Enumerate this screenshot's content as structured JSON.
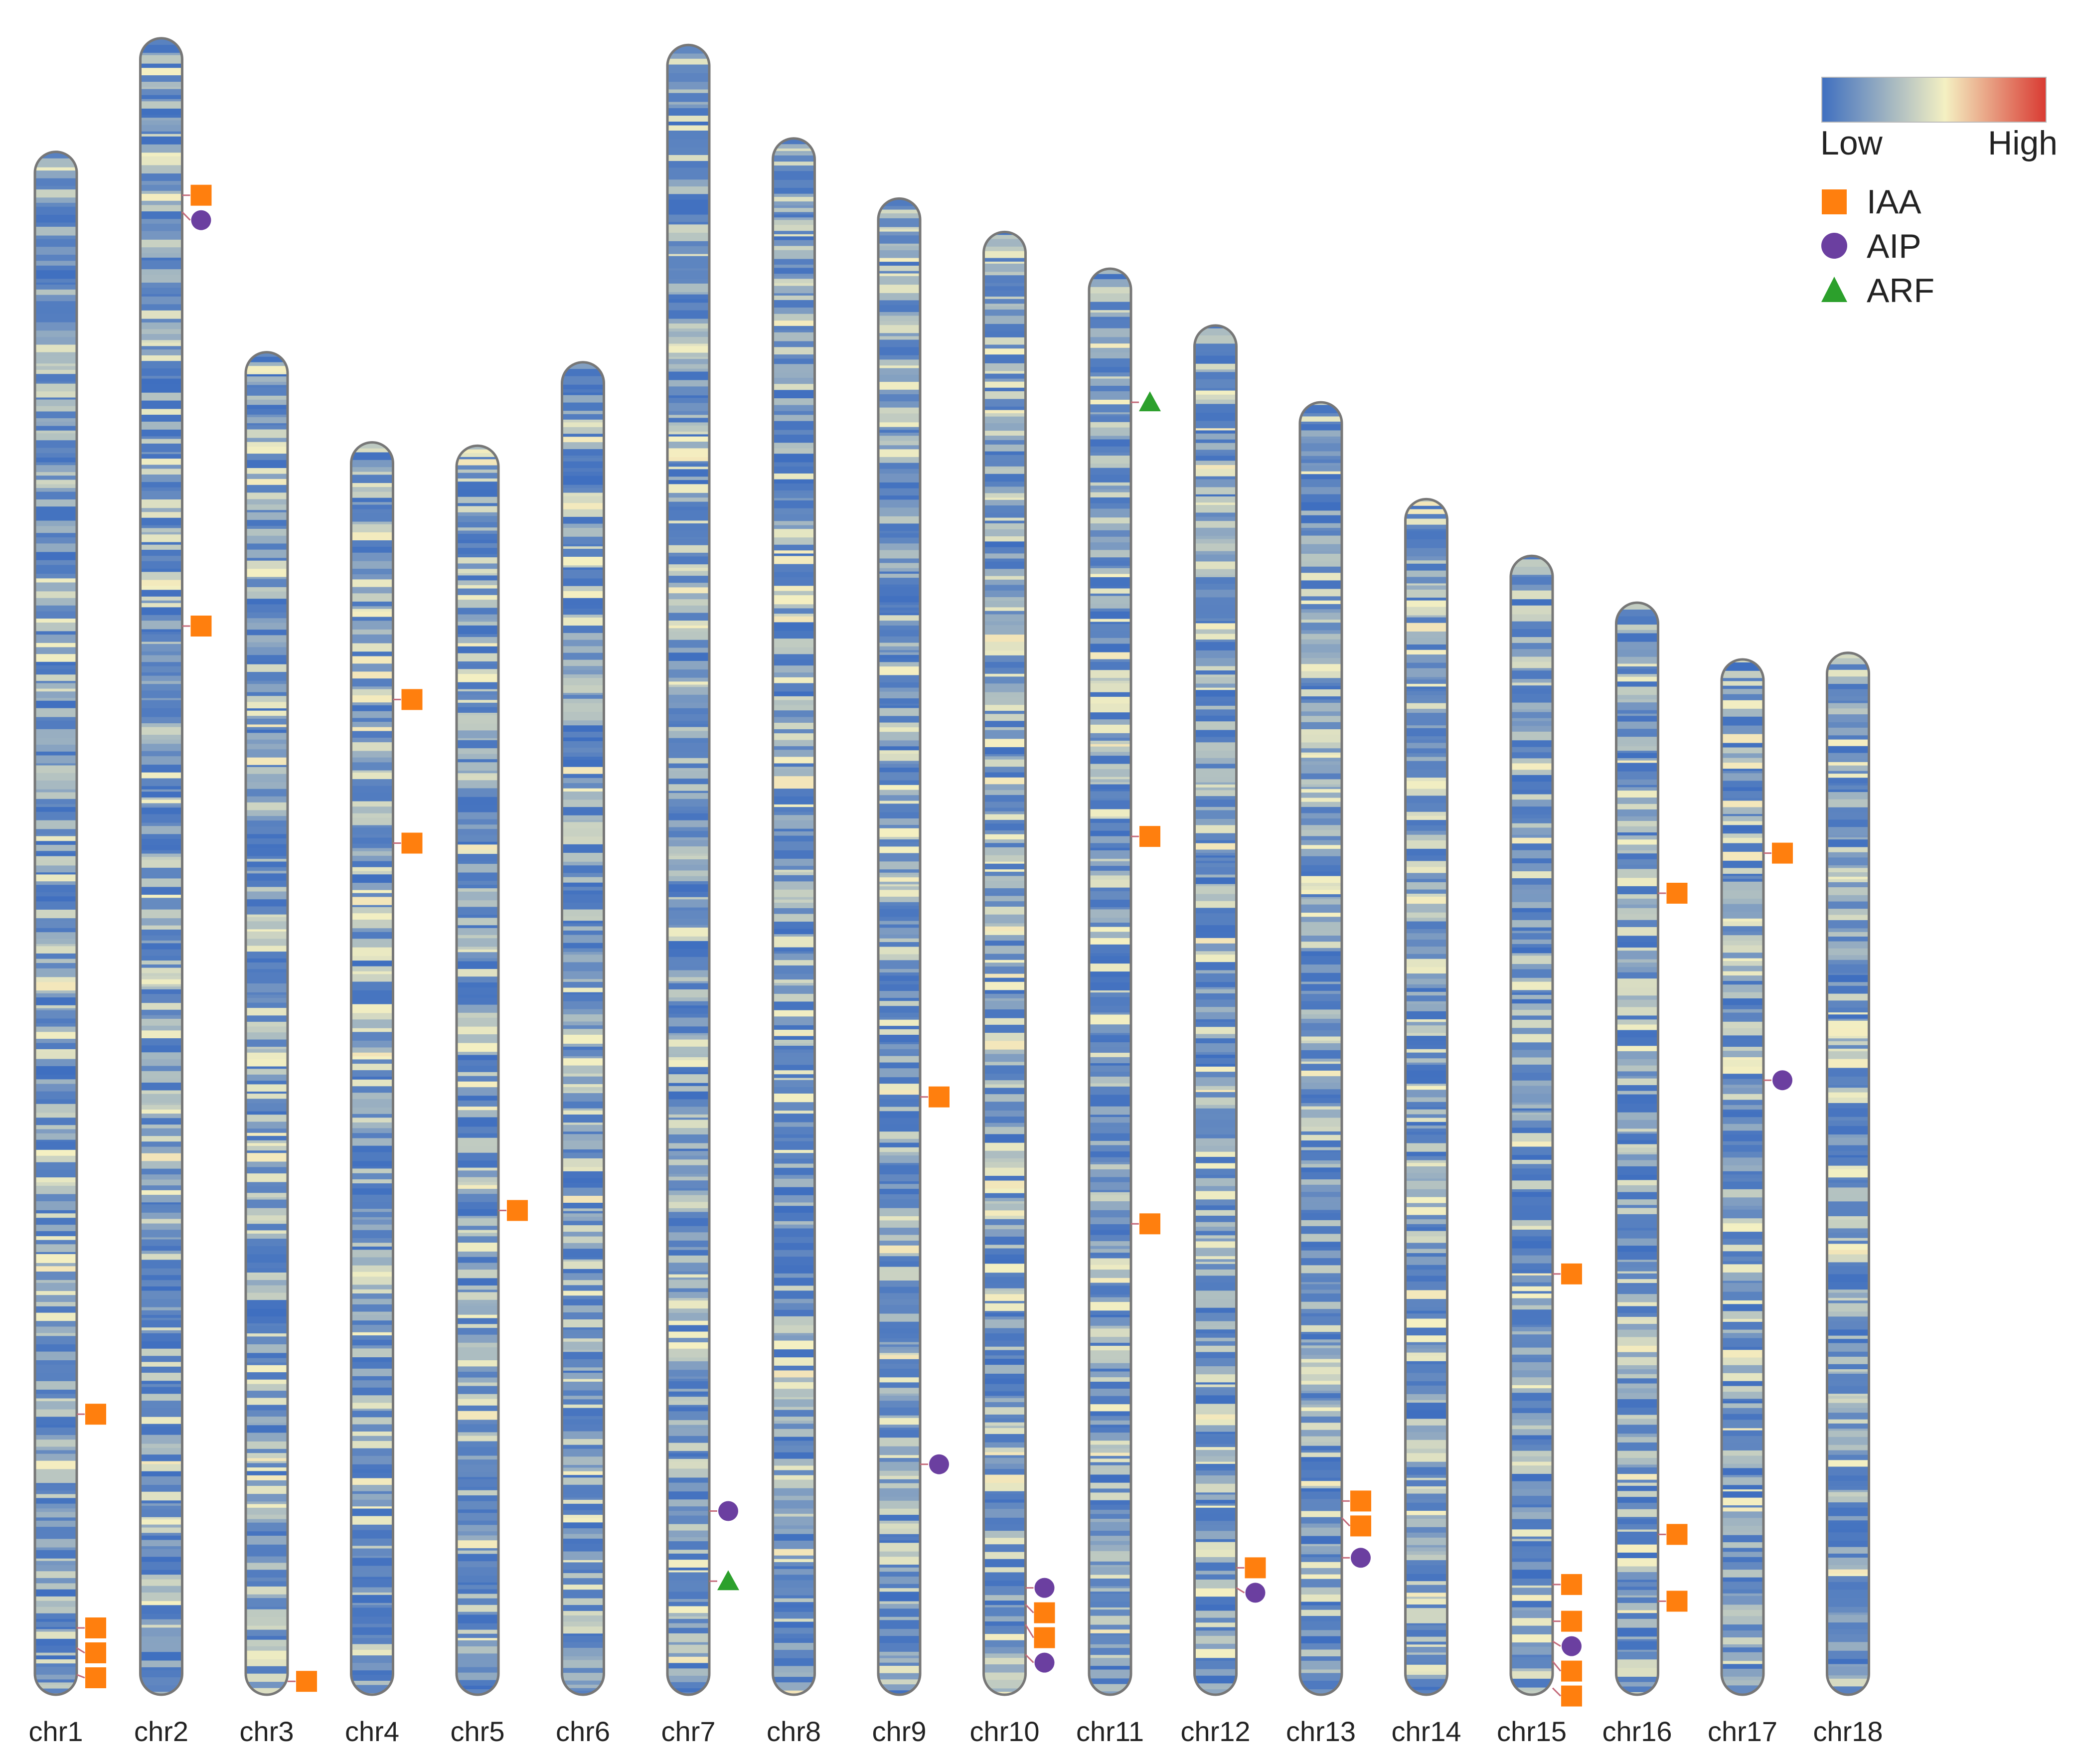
{
  "colors": {
    "scale_low": "#3f6fc0",
    "scale_mid": "#f4f0c2",
    "scale_high": "#d93a32",
    "IAA": "#ff7f0e",
    "AIP": "#6b3fa0",
    "ARF": "#2ca02c",
    "outline": "#777777"
  },
  "legend": {
    "scale_low_label": "Low",
    "scale_high_label": "High",
    "items": [
      {
        "label": "IAA",
        "shape": "square",
        "color_key": "IAA"
      },
      {
        "label": "AIP",
        "shape": "circle",
        "color_key": "AIP"
      },
      {
        "label": "ARF",
        "shape": "triangle",
        "color_key": "ARF"
      }
    ]
  },
  "chromosomes": [
    {
      "label": "chr1",
      "length": 46.2
    },
    {
      "label": "chr2",
      "length": 49.6
    },
    {
      "label": "chr3",
      "length": 40.2
    },
    {
      "label": "chr4",
      "length": 37.5
    },
    {
      "label": "chr5",
      "length": 37.4
    },
    {
      "label": "chr6",
      "length": 39.9
    },
    {
      "label": "chr7",
      "length": 49.4
    },
    {
      "label": "chr8",
      "length": 46.6
    },
    {
      "label": "chr9",
      "length": 44.8
    },
    {
      "label": "chr10",
      "length": 43.8
    },
    {
      "label": "chr11",
      "length": 42.7
    },
    {
      "label": "chr12",
      "length": 41.0
    },
    {
      "label": "chr13",
      "length": 38.7
    },
    {
      "label": "chr14",
      "length": 35.8
    },
    {
      "label": "chr15",
      "length": 34.1
    },
    {
      "label": "chr16",
      "length": 32.7
    },
    {
      "label": "chr17",
      "length": 31.0
    },
    {
      "label": "chr18",
      "length": 31.2
    }
  ],
  "genes": [
    {
      "chr": "chr1",
      "family": "IAA",
      "pos": 37.8
    },
    {
      "chr": "chr1",
      "family": "IAA",
      "pos": 44.2
    },
    {
      "chr": "chr1",
      "family": "IAA",
      "pos": 44.8
    },
    {
      "chr": "chr1",
      "family": "IAA",
      "pos": 45.6
    },
    {
      "chr": "chr2",
      "family": "IAA",
      "pos": 4.7
    },
    {
      "chr": "chr2",
      "family": "AIP",
      "pos": 5.2
    },
    {
      "chr": "chr2",
      "family": "IAA",
      "pos": 17.6
    },
    {
      "chr": "chr3",
      "family": "IAA",
      "pos": 39.8
    },
    {
      "chr": "chr4",
      "family": "IAA",
      "pos": 7.7
    },
    {
      "chr": "chr4",
      "family": "IAA",
      "pos": 12.0
    },
    {
      "chr": "chr5",
      "family": "IAA",
      "pos": 22.9
    },
    {
      "chr": "chr7",
      "family": "AIP",
      "pos": 43.9
    },
    {
      "chr": "chr7",
      "family": "ARF",
      "pos": 46.0
    },
    {
      "chr": "chr9",
      "family": "IAA",
      "pos": 26.9
    },
    {
      "chr": "chr9",
      "family": "AIP",
      "pos": 37.9
    },
    {
      "chr": "chr10",
      "family": "AIP",
      "pos": 40.6
    },
    {
      "chr": "chr10",
      "family": "IAA",
      "pos": 41.1
    },
    {
      "chr": "chr10",
      "family": "IAA",
      "pos": 41.7
    },
    {
      "chr": "chr10",
      "family": "AIP",
      "pos": 42.6
    },
    {
      "chr": "chr11",
      "family": "ARF",
      "pos": 4.0
    },
    {
      "chr": "chr11",
      "family": "IAA",
      "pos": 17.0
    },
    {
      "chr": "chr11",
      "family": "IAA",
      "pos": 28.6
    },
    {
      "chr": "chr12",
      "family": "IAA",
      "pos": 37.2
    },
    {
      "chr": "chr12",
      "family": "AIP",
      "pos": 37.8
    },
    {
      "chr": "chr13",
      "family": "IAA",
      "pos": 32.9
    },
    {
      "chr": "chr13",
      "family": "IAA",
      "pos": 33.4
    },
    {
      "chr": "chr13",
      "family": "AIP",
      "pos": 34.6
    },
    {
      "chr": "chr15",
      "family": "IAA",
      "pos": 21.5
    },
    {
      "chr": "chr15",
      "family": "IAA",
      "pos": 30.8
    },
    {
      "chr": "chr15",
      "family": "IAA",
      "pos": 31.9
    },
    {
      "chr": "chr15",
      "family": "AIP",
      "pos": 32.5
    },
    {
      "chr": "chr15",
      "family": "IAA",
      "pos": 33.1
    },
    {
      "chr": "chr15",
      "family": "IAA",
      "pos": 33.9
    },
    {
      "chr": "chr16",
      "family": "IAA",
      "pos": 8.7
    },
    {
      "chr": "chr16",
      "family": "IAA",
      "pos": 27.9
    },
    {
      "chr": "chr16",
      "family": "IAA",
      "pos": 29.9
    },
    {
      "chr": "chr17",
      "family": "IAA",
      "pos": 5.8
    },
    {
      "chr": "chr17",
      "family": "AIP",
      "pos": 12.6
    }
  ]
}
